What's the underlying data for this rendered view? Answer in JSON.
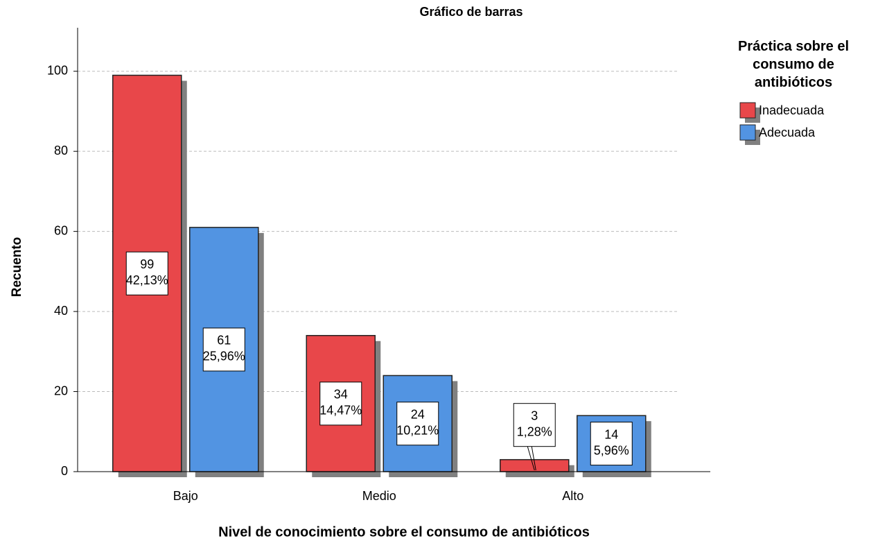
{
  "chart_data": {
    "type": "bar",
    "title": "Gráfico de barras",
    "x_label": "Nivel de conocimiento sobre el consumo de antibióticos",
    "y_label": "Recuento",
    "legend_title": "Práctica sobre el consumo de antibióticos",
    "categories": [
      "Bajo",
      "Medio",
      "Alto"
    ],
    "series": [
      {
        "name": "Inadecuada",
        "color": "#e8474a",
        "values": [
          99,
          34,
          3
        ],
        "percent_labels": [
          "42,13%",
          "14,47%",
          "1,28%"
        ]
      },
      {
        "name": "Adecuada",
        "color": "#5294e2",
        "values": [
          61,
          24,
          14
        ],
        "percent_labels": [
          "25,96%",
          "10,21%",
          "5,96%"
        ]
      }
    ],
    "ylim": [
      0,
      110
    ],
    "yticks": [
      0,
      20,
      40,
      60,
      80,
      100
    ],
    "grid": true,
    "legend": "right"
  }
}
